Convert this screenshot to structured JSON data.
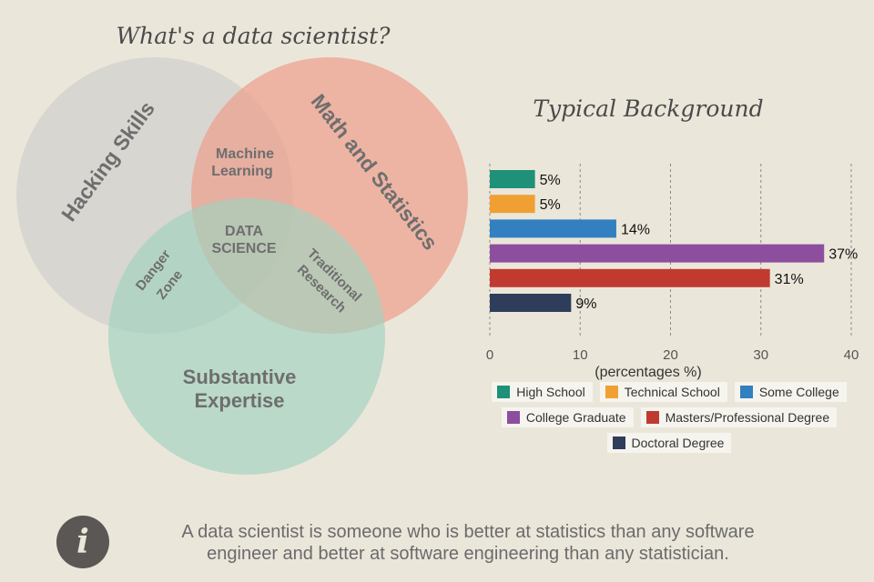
{
  "venn": {
    "title": "What's a data scientist?",
    "circles": [
      {
        "name": "Hacking Skills",
        "color": "#c9c9c9"
      },
      {
        "name": "Math and Statistics",
        "color": "#ee9a86"
      },
      {
        "name": "Substantive Expertise",
        "color": "#9fd3bf"
      }
    ],
    "regions": {
      "hacking": "Hacking Skills",
      "math": "Math and Statistics",
      "expertise_line1": "Substantive",
      "expertise_line2": "Expertise",
      "ml_line1": "Machine",
      "ml_line2": "Learning",
      "ds_line1": "DATA",
      "ds_line2": "SCIENCE",
      "danger_line1": "Danger",
      "danger_line2": "Zone",
      "research_line1": "Traditional",
      "research_line2": "Research"
    }
  },
  "chart_data": {
    "type": "bar",
    "orientation": "horizontal",
    "title": "Typical Background",
    "xlabel": "(percentages %)",
    "ylabel": "",
    "xlim": [
      0,
      40
    ],
    "xticks": [
      0,
      10,
      20,
      30,
      40
    ],
    "grid": "dashed vertical",
    "categories": [
      "High School",
      "Technical School",
      "Some College",
      "College Graduate",
      "Masters/Professional Degree",
      "Doctoral Degree"
    ],
    "values": [
      5,
      5,
      14,
      37,
      31,
      9
    ],
    "value_labels": [
      "5%",
      "5%",
      "14%",
      "37%",
      "31%",
      "9%"
    ],
    "colors": [
      "#1e9178",
      "#f0a032",
      "#3380c0",
      "#8e4e9e",
      "#c03a30",
      "#2e3d5a"
    ],
    "legend_position": "bottom"
  },
  "footer": {
    "icon_glyph": "i",
    "quote_line1": "A data scientist is someone who is better at statistics than any software",
    "quote_line2": "engineer and better at software engineering than any statistician."
  }
}
